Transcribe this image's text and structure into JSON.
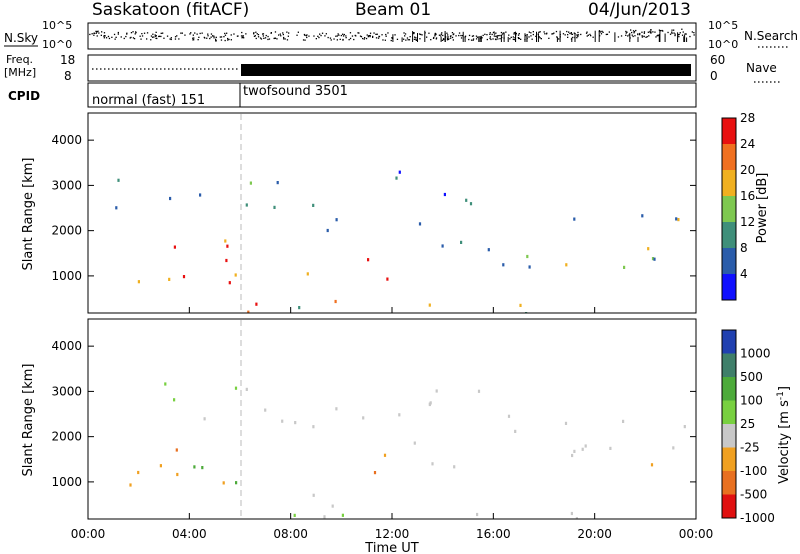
{
  "header": {
    "title": "Saskatoon (fitACF)",
    "beam": "Beam 01",
    "date": "04/Jun/2013"
  },
  "noise_panel": {
    "left_label": "N.Sky",
    "right_label": "N.Search",
    "ticks_left": [
      "10^5",
      "10^0"
    ],
    "ticks_right": [
      "10^5",
      "10^0"
    ]
  },
  "freq_panel": {
    "left_label_1": "Freq.",
    "left_label_2": "[MHz]",
    "right_label": "Nave",
    "ticks_left": [
      "18",
      "8"
    ],
    "ticks_right": [
      "60",
      "0"
    ]
  },
  "cpid_panel": {
    "label": "CPID",
    "mode_1": "normal (fast) 151",
    "mode_2": "twofsound 3501",
    "switch_time_h": 6.0
  },
  "x_axis": {
    "label": "Time UT",
    "ticks": [
      "00:00",
      "04:00",
      "08:00",
      "12:00",
      "16:00",
      "20:00",
      "00:00"
    ]
  },
  "chart_data": [
    {
      "type": "heatmap",
      "name": "Power",
      "ylabel": "Slant Range [km]",
      "ylim": [
        180,
        4600
      ],
      "xlim_hours": [
        0,
        24
      ],
      "y_ticks": [
        "1000",
        "2000",
        "3000",
        "4000"
      ],
      "colorbar": {
        "label": "Power [dB]",
        "ticks": [
          "4",
          "8",
          "12",
          "16",
          "20",
          "24",
          "28"
        ],
        "colors": [
          "#1010ff",
          "#2a5caa",
          "#3f8f7a",
          "#7ec850",
          "#f0b020",
          "#f07020",
          "#e81010"
        ]
      }
    },
    {
      "type": "heatmap",
      "name": "Velocity",
      "ylabel": "Slant Range [km]",
      "ylim": [
        180,
        4600
      ],
      "xlim_hours": [
        0,
        24
      ],
      "y_ticks": [
        "1000",
        "2000",
        "3000",
        "4000"
      ],
      "colorbar": {
        "label": "Velocity [m s^-1]",
        "ticks": [
          "1000",
          "500",
          "100",
          "25",
          "-25",
          "-100",
          "-500",
          "-1000"
        ],
        "colors": [
          "#2040b0",
          "#3f7f6a",
          "#4caa3a",
          "#78d040",
          "#c8c8c8",
          "#f0a020",
          "#e87020",
          "#e01010"
        ]
      }
    }
  ]
}
